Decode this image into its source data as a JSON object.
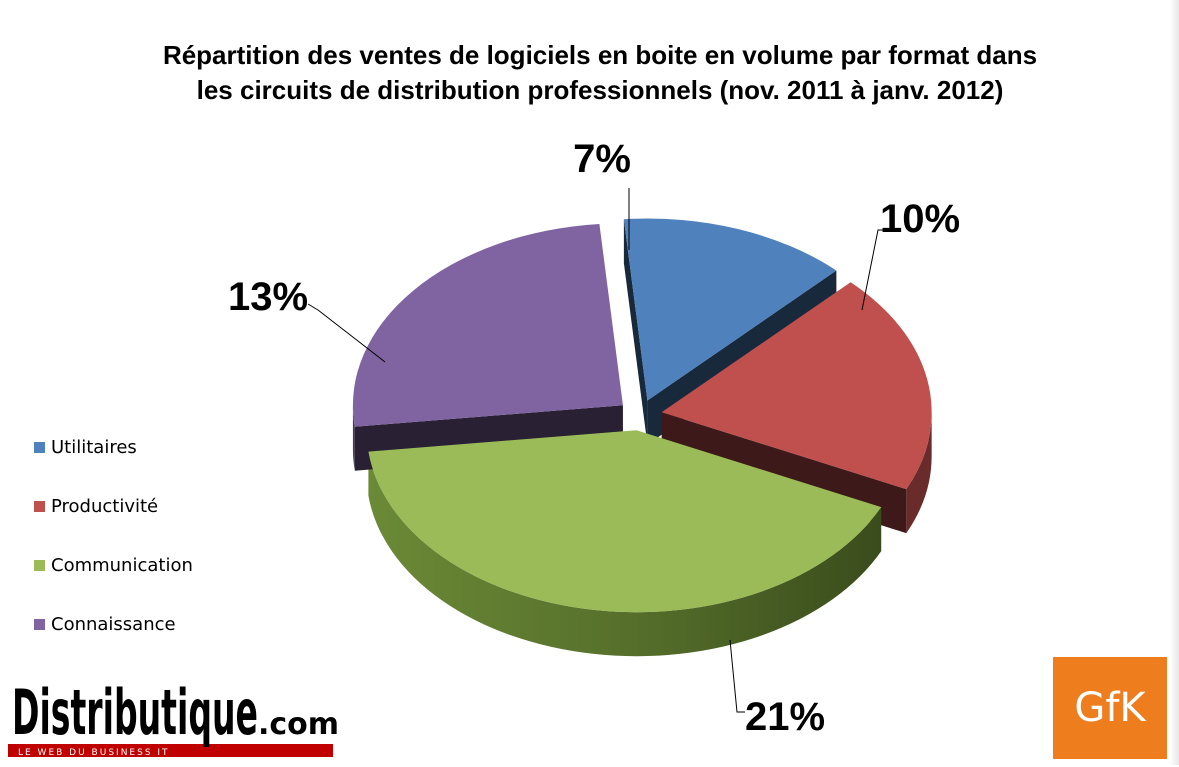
{
  "chart_data": {
    "type": "pie",
    "title_lines": [
      "Répartition des ventes de logiciels en boite en volume par format dans",
      "les circuits de distribution professionnels (nov. 2011 à janv. 2012)"
    ],
    "categories": [
      "Utilitaires",
      "Productivité",
      "Communication",
      "Connaissance"
    ],
    "values": [
      7,
      10,
      21,
      13
    ],
    "labels": [
      "7%",
      "10%",
      "21%",
      "13%"
    ],
    "colors": [
      "#4f81bd",
      "#c0504d",
      "#9bbb59",
      "#8064a2"
    ],
    "legend_position": "left",
    "style": "3d-exploded"
  },
  "logos": {
    "left": {
      "name": "Distributique",
      "suffix": ".com",
      "tagline": "LE WEB DU BUSINESS IT"
    },
    "right": {
      "name": "GfK",
      "color": "#ee7d1e"
    }
  }
}
